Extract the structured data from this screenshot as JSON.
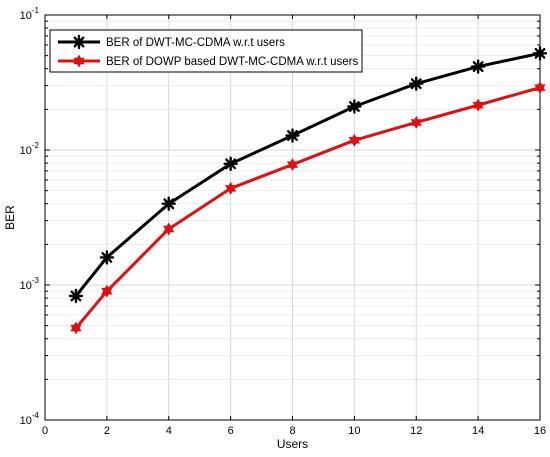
{
  "chart_data": {
    "type": "line",
    "title": "",
    "xlabel": "Users",
    "ylabel": "BER",
    "xlim": [
      0,
      16
    ],
    "ylim": [
      0.0001,
      0.1
    ],
    "yscale": "log",
    "grid": true,
    "legend_position": "top-left",
    "x_ticks": [
      "0",
      "2",
      "4",
      "6",
      "8",
      "10",
      "12",
      "14",
      "16"
    ],
    "y_ticks": [
      {
        "base": "10",
        "exp": "-4"
      },
      {
        "base": "10",
        "exp": "-3"
      },
      {
        "base": "10",
        "exp": "-2"
      },
      {
        "base": "10",
        "exp": "-1"
      }
    ],
    "x": [
      1,
      2,
      4,
      6,
      8,
      10,
      12,
      14,
      16
    ],
    "series": [
      {
        "name": "BER of DWT-MC-CDMA w.r.t users",
        "color": "#000000",
        "marker": "asterisk",
        "values": [
          0.00083,
          0.0016,
          0.004,
          0.0079,
          0.0128,
          0.021,
          0.031,
          0.0415,
          0.052
        ]
      },
      {
        "name": "BER of DOWP based DWT-MC-CDMA w.r.t users",
        "color": "#e01010",
        "marker": "hexagram",
        "values": [
          0.00048,
          0.0009,
          0.0026,
          0.0052,
          0.0078,
          0.0118,
          0.016,
          0.0215,
          0.029
        ]
      }
    ]
  }
}
